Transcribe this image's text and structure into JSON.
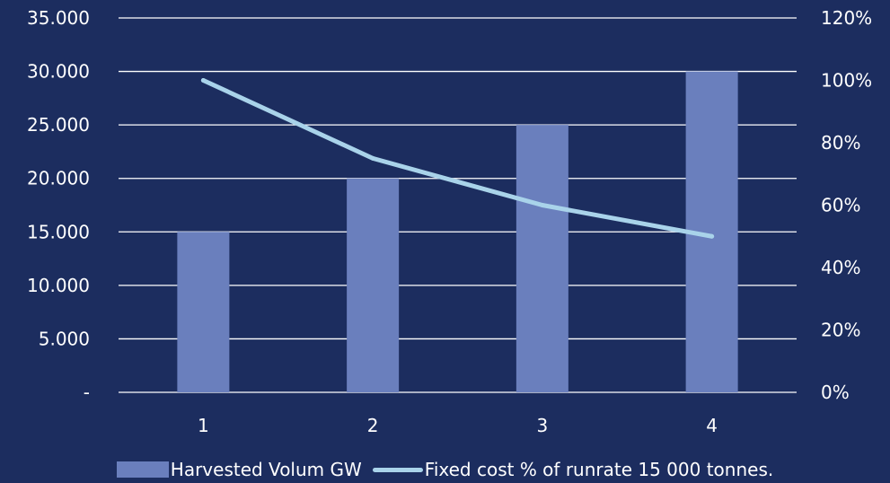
{
  "chart_data": {
    "type": "bar",
    "categories": [
      "1",
      "2",
      "3",
      "4"
    ],
    "series": [
      {
        "name": "Harvested Volum GW",
        "type": "bar",
        "axis": "left",
        "values": [
          15000,
          20000,
          25000,
          30000
        ]
      },
      {
        "name": "Fixed cost % of runrate 15 000 tonnes.",
        "type": "line",
        "axis": "right",
        "values": [
          1.0,
          0.75,
          0.6,
          0.5
        ]
      }
    ],
    "y_left": {
      "ylim": [
        0,
        35000
      ],
      "tick_labels": [
        "-",
        "5.000",
        "10.000",
        "15.000",
        "20.000",
        "25.000",
        "30.000",
        "35.000"
      ]
    },
    "y_right": {
      "ylim": [
        0,
        1.2
      ],
      "tick_labels": [
        "0%",
        "20%",
        "40%",
        "60%",
        "80%",
        "100%",
        "120%"
      ]
    },
    "grid": true,
    "legend_position": "bottom",
    "colors": {
      "background": "#1c2d5f",
      "bar": "#6a7fbd",
      "line": "#a9d3ea",
      "grid": "#ffffff",
      "text": "#ffffff"
    }
  }
}
